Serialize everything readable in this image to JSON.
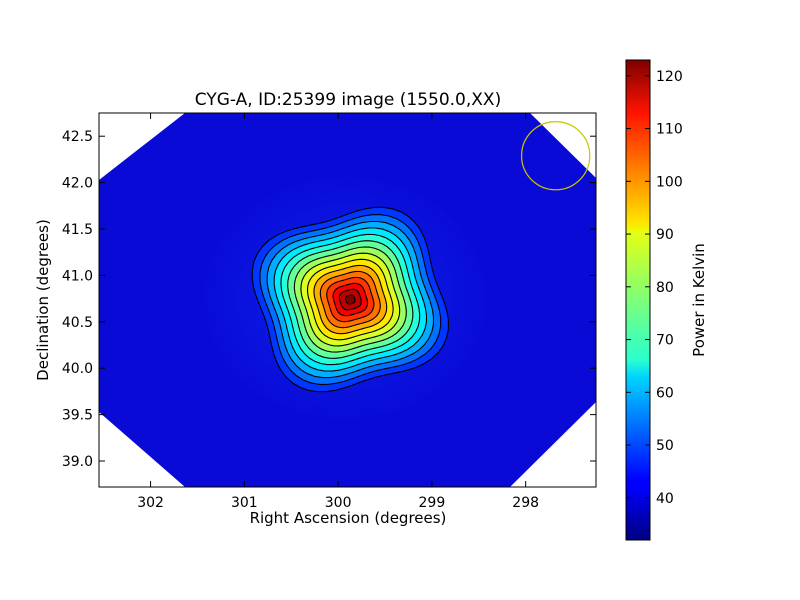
{
  "chart_data": {
    "type": "heatmap",
    "title": "CYG-A, ID:25399 image (1550.0,XX)",
    "xlabel": "Right Ascension (degrees)",
    "ylabel": "Declination (degrees)",
    "xlim": [
      302.55,
      297.25
    ],
    "ylim": [
      38.72,
      42.75
    ],
    "x_ticks": [
      302,
      301,
      300,
      299,
      298
    ],
    "x_tick_labels": [
      "302",
      "301",
      "300",
      "299",
      "298"
    ],
    "y_ticks": [
      39.0,
      39.5,
      40.0,
      40.5,
      41.0,
      41.5,
      42.0,
      42.5
    ],
    "y_tick_labels": [
      "39.0",
      "39.5",
      "40.0",
      "40.5",
      "41.0",
      "41.5",
      "42.0",
      "42.5"
    ],
    "colorbar": {
      "label": "Power in Kelvin",
      "range": [
        32,
        123
      ],
      "ticks": [
        40,
        50,
        60,
        70,
        80,
        90,
        100,
        110,
        120
      ],
      "tick_labels": [
        "40",
        "50",
        "60",
        "70",
        "80",
        "90",
        "100",
        "110",
        "120"
      ],
      "colormap": "jet"
    },
    "source": {
      "ra_center": 299.87,
      "dec_center": 40.74,
      "peak_kelvin": 123,
      "background_kelvin": 38
    },
    "contours": {
      "count": 15,
      "color": "#000000"
    },
    "beam_circle": {
      "ra_center": 297.68,
      "dec_center": 42.29,
      "color": "#c8c800"
    }
  }
}
